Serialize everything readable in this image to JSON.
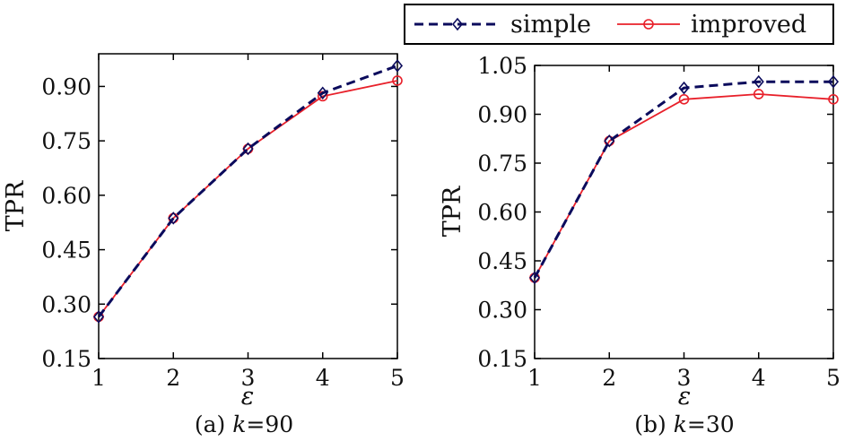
{
  "colors": {
    "simple": "#0b0b5c",
    "improved": "#e8202a",
    "axis": "#000000"
  },
  "legend": {
    "placement": "top-right",
    "items": [
      {
        "series": 0,
        "label": "simple",
        "marker": "diamond",
        "dash": true
      },
      {
        "series": 1,
        "label": "improved",
        "marker": "circle",
        "dash": false
      }
    ]
  },
  "chart_data": [
    {
      "type": "line",
      "caption": "(a) k=90",
      "caption_parts": {
        "prefix": "(a) ",
        "var": "k",
        "suffix": "=90"
      },
      "xlabel": "ε",
      "ylabel": "TPR",
      "xlim": [
        1,
        5
      ],
      "ylim": [
        0.15,
        0.99
      ],
      "x_ticks": [
        1,
        2,
        3,
        4,
        5
      ],
      "y_ticks": [
        "0.15",
        "0.30",
        "0.45",
        "0.60",
        "0.75",
        "0.90"
      ],
      "x": [
        1,
        2,
        3,
        4,
        5
      ],
      "series": [
        {
          "name": "simple",
          "values": [
            0.265,
            0.537,
            0.728,
            0.882,
            0.957
          ]
        },
        {
          "name": "improved",
          "values": [
            0.265,
            0.537,
            0.728,
            0.873,
            0.916
          ]
        }
      ]
    },
    {
      "type": "line",
      "caption": "(b) k=30",
      "caption_parts": {
        "prefix": "(b) ",
        "var": "k",
        "suffix": "=30"
      },
      "xlabel": "ε",
      "ylabel": "TPR",
      "xlim": [
        1,
        5
      ],
      "ylim": [
        0.15,
        1.05
      ],
      "x_ticks": [
        1,
        2,
        3,
        4,
        5
      ],
      "y_ticks": [
        "0.15",
        "0.30",
        "0.45",
        "0.60",
        "0.75",
        "0.90",
        "1.05"
      ],
      "x": [
        1,
        2,
        3,
        4,
        5
      ],
      "series": [
        {
          "name": "simple",
          "values": [
            0.398,
            0.818,
            0.981,
            1.0,
            1.0
          ]
        },
        {
          "name": "improved",
          "values": [
            0.398,
            0.818,
            0.946,
            0.962,
            0.946
          ]
        }
      ]
    }
  ]
}
